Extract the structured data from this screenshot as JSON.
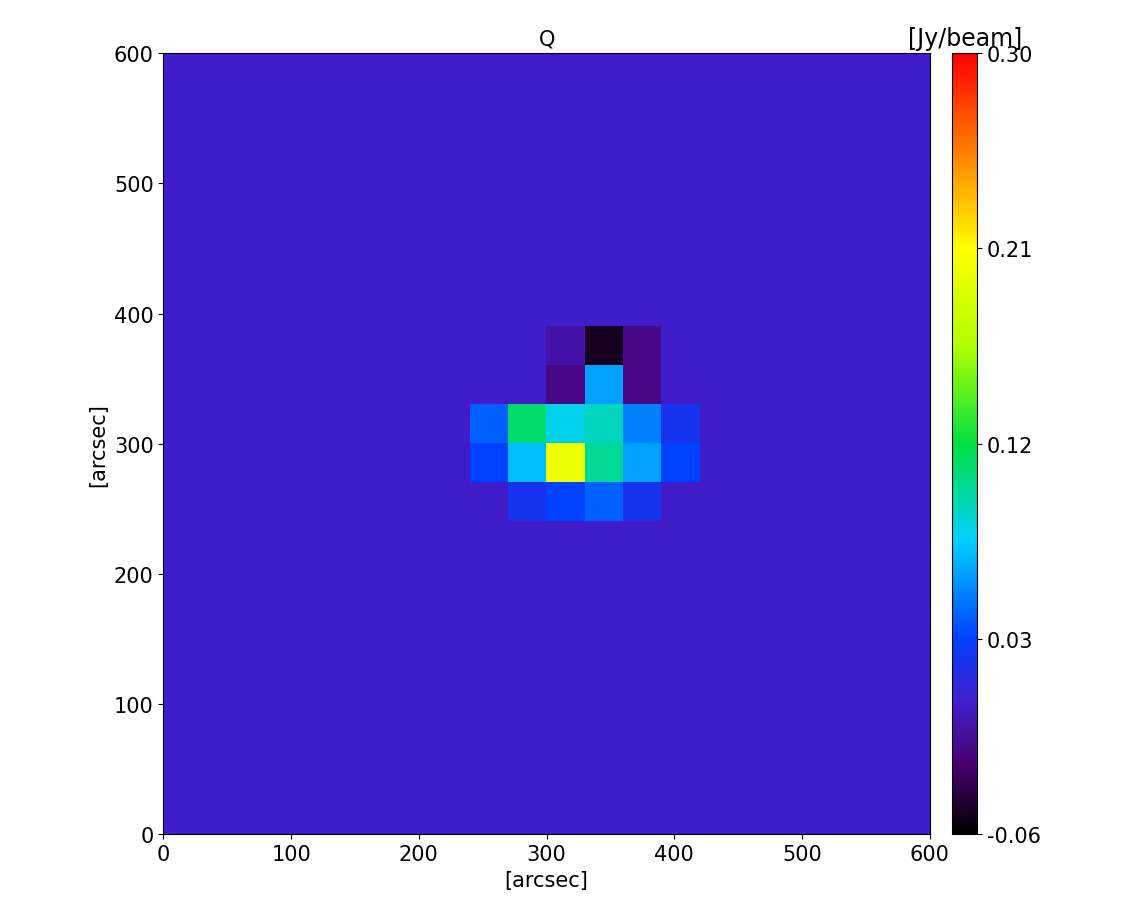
{
  "chart_data": {
    "type": "heatmap",
    "title": "Q",
    "xlabel": "[arcsec]",
    "ylabel": "[arcsec]",
    "xlim": [
      0,
      600
    ],
    "ylim": [
      0,
      600
    ],
    "xticks": [
      0,
      100,
      200,
      300,
      400,
      500,
      600
    ],
    "yticks": [
      0,
      100,
      200,
      300,
      400,
      500,
      600
    ],
    "colorbar": {
      "label": "[Jy/beam]",
      "range": [
        -0.06,
        0.3
      ],
      "ticks": [
        -0.06,
        0.03,
        0.12,
        0.21,
        {
          "value": 0.3,
          "label": "0.30"
        }
      ]
    },
    "cells": [
      [
        0,
        0,
        0,
        0,
        0,
        0,
        0,
        0,
        0,
        0,
        0,
        0,
        0,
        0,
        0,
        0,
        0,
        0,
        0,
        0
      ],
      [
        0,
        0,
        0,
        0,
        0,
        0,
        0,
        0,
        0,
        0,
        0,
        0,
        0,
        0,
        0,
        0,
        0,
        0,
        0,
        0
      ],
      [
        0,
        0,
        0,
        0,
        0,
        0,
        0,
        0,
        0,
        0,
        0,
        0,
        0,
        0,
        0,
        0,
        0,
        0,
        0,
        0
      ],
      [
        0,
        0,
        0,
        0,
        0,
        0,
        0,
        0,
        0,
        0,
        0,
        0,
        0,
        0,
        0,
        0,
        0,
        0,
        0,
        0
      ],
      [
        0,
        0,
        0,
        0,
        0,
        0,
        0,
        0,
        0,
        0,
        0,
        0,
        0,
        0,
        0,
        0,
        0,
        0,
        0,
        0
      ],
      [
        0,
        0,
        0,
        0,
        0,
        0,
        0,
        0,
        0,
        0,
        0,
        0,
        0,
        0,
        0,
        0,
        0,
        0,
        0,
        0
      ],
      [
        0,
        0,
        0,
        0,
        0,
        0,
        0,
        0,
        0,
        0,
        0,
        0,
        0,
        0,
        0,
        0,
        0,
        0,
        0,
        0
      ],
      [
        0,
        0,
        0,
        0,
        0,
        0,
        0,
        0,
        0,
        0,
        0,
        0,
        0,
        0,
        0,
        0,
        0,
        0,
        0,
        0
      ],
      [
        0,
        0,
        0,
        0,
        0,
        0,
        0,
        0,
        0,
        0.02,
        0.03,
        0.04,
        0.02,
        0,
        0,
        0,
        0,
        0,
        0,
        0
      ],
      [
        0,
        0,
        0,
        0,
        0,
        0,
        0,
        0,
        0.03,
        0.07,
        0.2,
        0.1,
        0.06,
        0.03,
        0,
        0,
        0,
        0,
        0,
        0
      ],
      [
        0,
        0,
        0,
        0,
        0,
        0,
        0,
        0,
        0.04,
        0.11,
        0.08,
        0.09,
        0.05,
        0.02,
        0,
        0,
        0,
        0,
        0,
        0
      ],
      [
        0,
        0,
        0,
        0,
        0,
        0,
        0,
        0,
        0,
        0,
        -0.02,
        0.06,
        -0.02,
        0,
        0,
        0,
        0,
        0,
        0,
        0
      ],
      [
        0,
        0,
        0,
        0,
        0,
        0,
        0,
        0,
        0,
        0,
        -0.01,
        -0.05,
        -0.02,
        0,
        0,
        0,
        0,
        0,
        0,
        0
      ],
      [
        0,
        0,
        0,
        0,
        0,
        0,
        0,
        0,
        0,
        0,
        0,
        0,
        0,
        0,
        0,
        0,
        0,
        0,
        0,
        0
      ],
      [
        0,
        0,
        0,
        0,
        0,
        0,
        0,
        0,
        0,
        0,
        0,
        0,
        0,
        0,
        0,
        0,
        0,
        0,
        0,
        0
      ],
      [
        0,
        0,
        0,
        0,
        0,
        0,
        0,
        0,
        0,
        0,
        0,
        0,
        0,
        0,
        0,
        0,
        0,
        0,
        0,
        0
      ],
      [
        0,
        0,
        0,
        0,
        0,
        0,
        0,
        0,
        0,
        0,
        0,
        0,
        0,
        0,
        0,
        0,
        0,
        0,
        0,
        0
      ],
      [
        0,
        0,
        0,
        0,
        0,
        0,
        0,
        0,
        0,
        0,
        0,
        0,
        0,
        0,
        0,
        0,
        0,
        0,
        0,
        0
      ],
      [
        0,
        0,
        0,
        0,
        0,
        0,
        0,
        0,
        0,
        0,
        0,
        0,
        0,
        0,
        0,
        0,
        0,
        0,
        0,
        0
      ],
      [
        0,
        0,
        0,
        0,
        0,
        0,
        0,
        0,
        0,
        0,
        0,
        0,
        0,
        0,
        0,
        0,
        0,
        0,
        0,
        0
      ]
    ]
  }
}
